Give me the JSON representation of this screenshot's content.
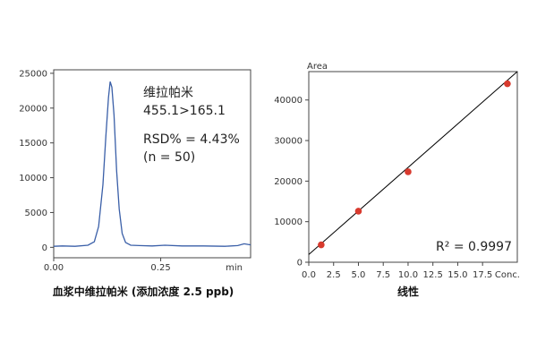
{
  "chart_data": [
    {
      "type": "line",
      "title": "",
      "caption": "血浆中维拉帕米 (添加浓度 2.5 ppb)",
      "xlabel": "min",
      "ylabel": "",
      "xlim": [
        0.0,
        0.46
      ],
      "ylim": [
        -1500,
        25500
      ],
      "x_ticks": [
        0.0,
        0.25
      ],
      "x_tick_labels": [
        "0.00",
        "0.25"
      ],
      "y_ticks": [
        0,
        5000,
        10000,
        15000,
        20000,
        25000
      ],
      "y_tick_labels": [
        "0",
        "5000",
        "10000",
        "15000",
        "20000",
        "25000"
      ],
      "grid": false,
      "legend": "none",
      "series": [
        {
          "color": "#3a5fa8",
          "x": [
            0.0,
            0.02,
            0.05,
            0.08,
            0.095,
            0.105,
            0.115,
            0.122,
            0.128,
            0.132,
            0.136,
            0.141,
            0.147,
            0.153,
            0.16,
            0.168,
            0.18,
            0.2,
            0.23,
            0.26,
            0.3,
            0.35,
            0.4,
            0.43,
            0.445,
            0.46
          ],
          "y": [
            150,
            200,
            150,
            300,
            800,
            3000,
            9000,
            16000,
            21500,
            23800,
            23000,
            19000,
            11000,
            5500,
            2000,
            700,
            300,
            250,
            200,
            300,
            200,
            200,
            150,
            250,
            500,
            350
          ]
        }
      ],
      "annotations": [
        "维拉帕米",
        "455.1>165.1",
        "RSD% = 4.43%",
        "(n = 50)"
      ]
    },
    {
      "type": "scatter",
      "title": "",
      "caption": "线性",
      "xlabel": "Conc.",
      "ylabel": "Area",
      "xlim": [
        0,
        21
      ],
      "ylim": [
        0,
        47000
      ],
      "x_ticks": [
        0.0,
        2.5,
        5.0,
        7.5,
        10.0,
        12.5,
        15.0,
        17.5
      ],
      "x_tick_labels": [
        "0.0",
        "2.5",
        "5.0",
        "7.5",
        "10.0",
        "12.5",
        "15.0",
        "17.5"
      ],
      "y_ticks": [
        0,
        10000,
        20000,
        30000,
        40000
      ],
      "y_tick_labels": [
        "0",
        "10000",
        "20000",
        "30000",
        "40000"
      ],
      "grid": false,
      "legend": "none",
      "points": {
        "color": "#d83a2e",
        "x": [
          1.25,
          5.0,
          10.0,
          20.0
        ],
        "y": [
          4300,
          12600,
          22300,
          44000
        ]
      },
      "fit_line": {
        "color": "#000000",
        "x": [
          0,
          21
        ],
        "y": [
          1900,
          47000
        ]
      },
      "annotations": [
        "R² = 0.9997"
      ]
    }
  ]
}
